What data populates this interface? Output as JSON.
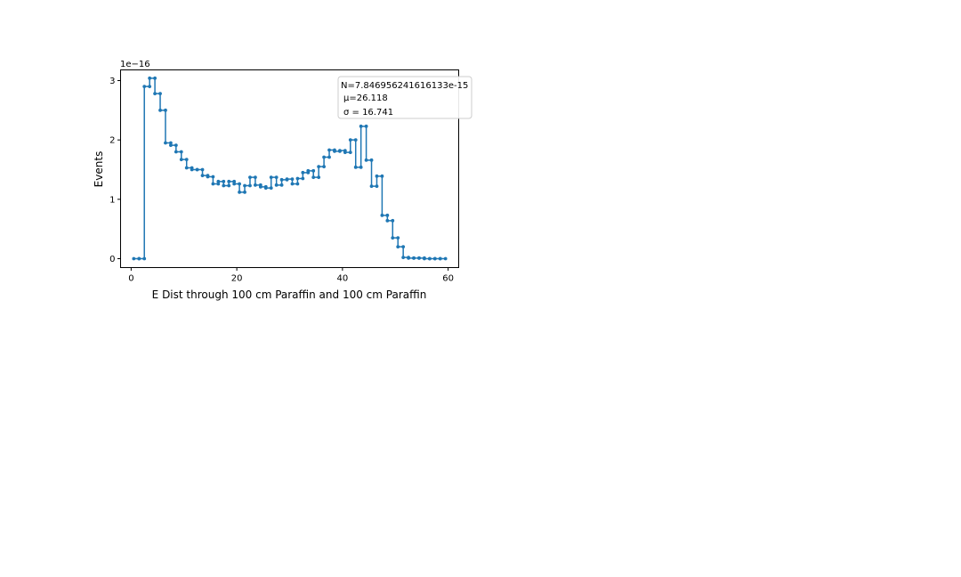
{
  "chart_data": {
    "type": "line",
    "style": "step-with-markers",
    "xlabel": "E Dist through 100 cm Paraffin and 100 cm Paraffin",
    "ylabel": "Events",
    "offset_label": "1e−16",
    "xlim": [
      -2,
      62
    ],
    "ylim": [
      -0.15,
      3.18
    ],
    "x_ticks": [
      0,
      20,
      40,
      60
    ],
    "x_tick_labels": [
      "0",
      "20",
      "40",
      "60"
    ],
    "y_ticks": [
      0,
      1,
      2,
      3
    ],
    "y_tick_labels": [
      "0",
      "1",
      "2",
      "3"
    ],
    "grid": false,
    "color": "#1f77b4",
    "series": [
      {
        "bin_edges": [
          0.5,
          1.5,
          2.5,
          3.5,
          4.5,
          5.5,
          6.5,
          7.5,
          8.5,
          9.5,
          10.5,
          11.5,
          12.5,
          13.5,
          14.5,
          15.5,
          16.5,
          17.5,
          18.5,
          19.5,
          20.5,
          21.5,
          22.5,
          23.5,
          24.5,
          25.5,
          26.5,
          27.5,
          28.5,
          29.5,
          30.5,
          31.5,
          32.5,
          33.5,
          34.5,
          35.5,
          36.5,
          37.5,
          38.5,
          39.5,
          40.5,
          41.5,
          42.5,
          43.5,
          44.5,
          45.5,
          46.5,
          47.5,
          48.5,
          49.5,
          50.5,
          51.5,
          52.5,
          53.5,
          54.5,
          55.5,
          56.5,
          57.5,
          58.5,
          59.5
        ],
        "values": [
          0.0,
          0.0,
          2.9,
          3.04,
          2.78,
          2.5,
          1.95,
          1.91,
          1.8,
          1.67,
          1.53,
          1.5,
          1.5,
          1.4,
          1.38,
          1.26,
          1.3,
          1.23,
          1.3,
          1.26,
          1.12,
          1.23,
          1.37,
          1.24,
          1.21,
          1.19,
          1.37,
          1.24,
          1.33,
          1.34,
          1.26,
          1.35,
          1.45,
          1.48,
          1.37,
          1.55,
          1.71,
          1.83,
          1.81,
          1.82,
          1.79,
          2.0,
          1.54,
          2.23,
          1.66,
          1.22,
          1.39,
          0.73,
          0.64,
          0.35,
          0.2,
          0.02,
          0.01,
          0.01,
          0.01,
          0.0,
          0.0,
          0.0,
          0.0
        ]
      }
    ],
    "stats_box": {
      "n_line": "N=7.846956241616133e-15",
      "mu_line": "μ=26.118",
      "sigma_line": "σ = 16.741"
    }
  }
}
